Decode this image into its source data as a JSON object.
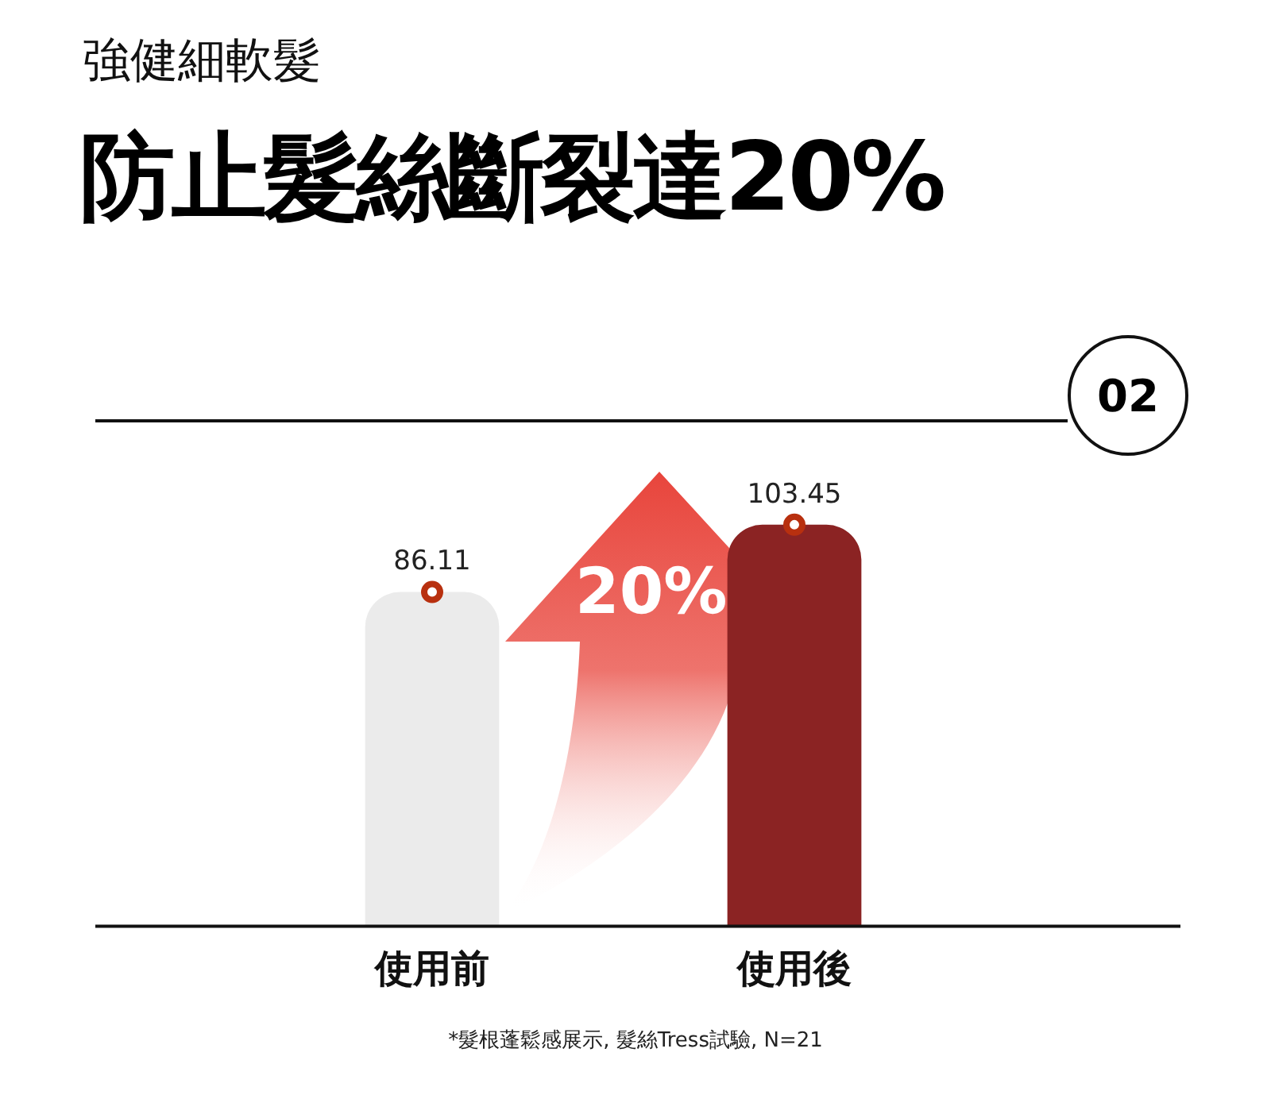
{
  "chart_data": {
    "type": "bar",
    "subtitle": "強健細軟髮",
    "title": "防止髮絲斷裂達20%",
    "categories": [
      "使用前",
      "使用後"
    ],
    "series": [
      {
        "type": "bar",
        "colors": [
          "#ebebeb",
          "#8b2323"
        ],
        "values": [
          86.11,
          103.45
        ]
      },
      {
        "type": "scatter",
        "x": [
          "使用前",
          "使用後"
        ],
        "color": "#b8300f",
        "values": [
          86.11,
          103.45
        ],
        "value_labels": [
          "86.11",
          "103.45"
        ]
      }
    ],
    "marker": "circle",
    "grid": false,
    "legend": false,
    "tick_labels": "x",
    "annotations": [
      "20%",
      "02",
      "*髮根蓬鬆感展示, 髮絲Tress試驗, N=21"
    ]
  }
}
